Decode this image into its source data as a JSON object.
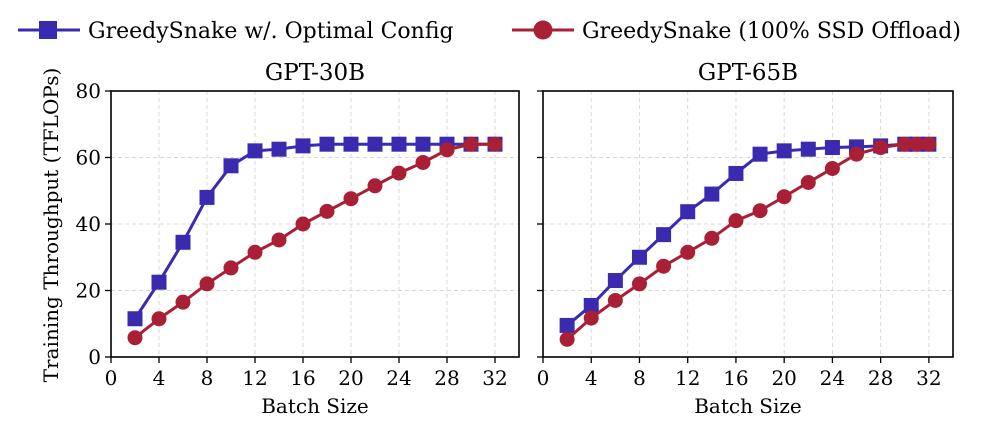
{
  "legend": {
    "optimal": "GreedySnake w/. Optimal Config",
    "ssd": "GreedySnake (100% SSD Offload)"
  },
  "colors": {
    "optimal": "#3a2ab0",
    "ssd": "#a81f36"
  },
  "ylabel": "Training Throughput (TFLOPs)",
  "chart_data": [
    {
      "type": "line",
      "title": "GPT-30B",
      "xlabel": "Batch Size",
      "ylabel": "Training Throughput (TFLOPs)",
      "xlim": [
        0,
        34
      ],
      "ylim": [
        0,
        80
      ],
      "xticks": [
        0,
        4,
        8,
        12,
        16,
        20,
        24,
        28,
        32
      ],
      "yticks": [
        0,
        20,
        40,
        60,
        80
      ],
      "grid": true,
      "legend_position": "top",
      "series": [
        {
          "name": "GreedySnake w/. Optimal Config",
          "marker": "square",
          "color": "#3a2ab0",
          "x": [
            2,
            4,
            6,
            8,
            10,
            12,
            14,
            16,
            18,
            20,
            22,
            24,
            26,
            28,
            30,
            32
          ],
          "y": [
            11.5,
            22.5,
            34.5,
            48,
            57.5,
            62,
            62.5,
            63.5,
            64,
            64,
            64,
            64,
            64,
            64,
            64,
            64
          ]
        },
        {
          "name": "GreedySnake (100% SSD Offload)",
          "marker": "circle",
          "color": "#a81f36",
          "x": [
            2,
            4,
            6,
            8,
            10,
            12,
            14,
            16,
            18,
            20,
            22,
            24,
            26,
            28,
            30,
            32
          ],
          "y": [
            5.8,
            11.5,
            16.5,
            22,
            26.8,
            31.5,
            35.2,
            40,
            43.8,
            47.6,
            51.5,
            55.3,
            58.5,
            62.3,
            64,
            64
          ]
        }
      ]
    },
    {
      "type": "line",
      "title": "GPT-65B",
      "xlabel": "Batch Size",
      "xlim": [
        0,
        34
      ],
      "ylim": [
        0,
        80
      ],
      "xticks": [
        0,
        4,
        8,
        12,
        16,
        20,
        24,
        28,
        32
      ],
      "yticks": [
        0,
        20,
        40,
        60,
        80
      ],
      "grid": true,
      "series": [
        {
          "name": "GreedySnake w/. Optimal Config",
          "marker": "square",
          "color": "#3a2ab0",
          "x": [
            2,
            4,
            6,
            8,
            10,
            12,
            14,
            16,
            18,
            20,
            22,
            24,
            26,
            28,
            30,
            31,
            32
          ],
          "y": [
            9.5,
            15.5,
            23,
            30,
            36.8,
            43.7,
            49,
            55.2,
            61,
            62,
            62.5,
            63,
            63.2,
            63.5,
            64,
            64,
            64
          ]
        },
        {
          "name": "GreedySnake (100% SSD Offload)",
          "marker": "circle",
          "color": "#a81f36",
          "x": [
            2,
            4,
            6,
            8,
            10,
            12,
            14,
            16,
            18,
            20,
            22,
            24,
            26,
            28,
            30,
            31,
            32
          ],
          "y": [
            5.3,
            11.7,
            17,
            22,
            27.3,
            31.5,
            35.7,
            41,
            44,
            48.2,
            52.5,
            56.7,
            61,
            63,
            64,
            64,
            64
          ]
        }
      ]
    }
  ]
}
